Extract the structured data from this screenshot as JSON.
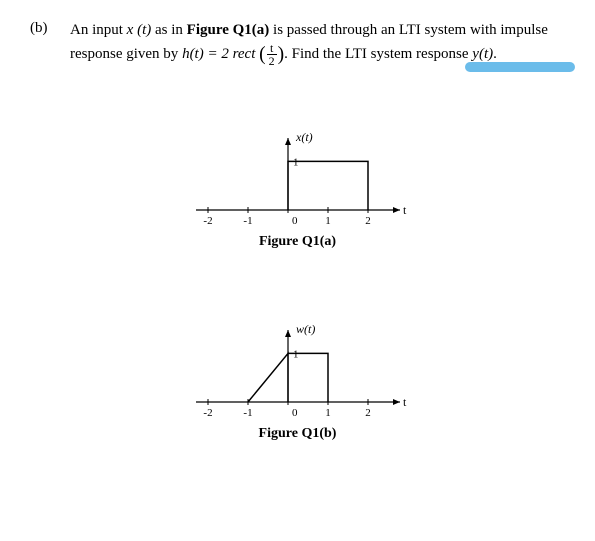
{
  "question": {
    "part_label": "(b)",
    "text_line1_a": "An input ",
    "text_line1_xt": "x (t)",
    "text_line1_b": " as in ",
    "text_line1_fig": "Figure Q1(a)",
    "text_line1_c": " is passed through an LTI system with impulse",
    "text_line2_a": "response given by  ",
    "text_line2_ht": "h(t) = 2 rect",
    "text_line2_b": ". Find the LTI system response ",
    "text_line2_yt": "y(t)",
    "text_line2_c": ".",
    "frac_num": "t",
    "frac_den": "2"
  },
  "fig_a": {
    "caption": "Figure Q1(a)",
    "ylabel": "x(t)",
    "xlabel": "t",
    "xticks": [
      "-2",
      "-1",
      "0",
      "1",
      "2"
    ],
    "ytick": "1",
    "axis_color": "#000000",
    "line_color": "#000000",
    "line_width": 1.5,
    "polyline": [
      [
        0,
        0
      ],
      [
        0,
        1
      ],
      [
        2,
        1
      ],
      [
        2,
        0
      ]
    ],
    "xlim": [
      -2.5,
      3
    ],
    "ylim": [
      0,
      1.4
    ]
  },
  "fig_b": {
    "caption": "Figure Q1(b)",
    "ylabel": "w(t)",
    "xlabel": "t",
    "xticks": [
      "-2",
      "-1",
      "0",
      "1",
      "2"
    ],
    "ytick": "1",
    "axis_color": "#000000",
    "line_color": "#000000",
    "line_width": 1.5,
    "polyline": [
      [
        -1,
        0
      ],
      [
        0,
        1
      ],
      [
        0,
        0
      ],
      [
        0,
        1
      ],
      [
        1,
        1
      ],
      [
        1,
        0
      ]
    ],
    "xlim": [
      -2.5,
      3
    ],
    "ylim": [
      0,
      1.4
    ]
  },
  "colors": {
    "background": "#ffffff",
    "text": "#000000",
    "highlight": "#5bb5e8"
  }
}
